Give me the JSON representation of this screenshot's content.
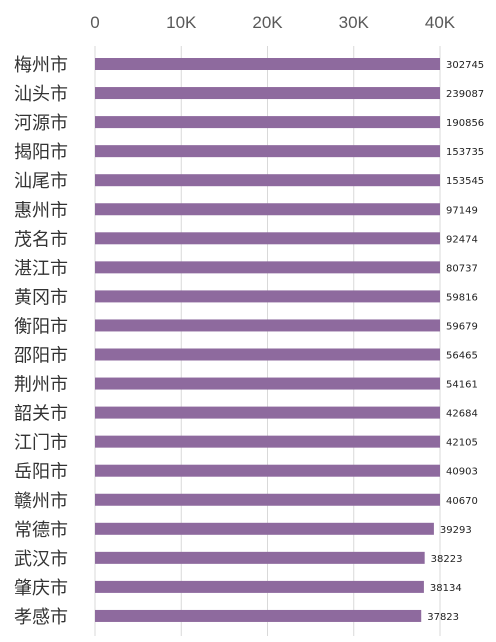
{
  "chart_data": {
    "type": "bar",
    "orientation": "horizontal",
    "title": "",
    "xlabel": "",
    "ylabel": "",
    "xlim": [
      0,
      40000
    ],
    "xticks": [
      0,
      10000,
      20000,
      30000,
      40000
    ],
    "xtick_labels": [
      "0",
      "10K",
      "20K",
      "30K",
      "40K"
    ],
    "x_axis_position": "top",
    "grid": true,
    "bar_color": "#8e6a9e",
    "categories": [
      "梅州市",
      "汕头市",
      "河源市",
      "揭阳市",
      "汕尾市",
      "惠州市",
      "茂名市",
      "湛江市",
      "黄冈市",
      "衡阳市",
      "邵阳市",
      "荆州市",
      "韶关市",
      "江门市",
      "岳阳市",
      "赣州市",
      "常德市",
      "武汉市",
      "肇庆市",
      "孝感市"
    ],
    "values": [
      302745,
      239087,
      190856,
      153735,
      153545,
      97149,
      92474,
      80737,
      59816,
      59679,
      56465,
      54161,
      42684,
      42105,
      40903,
      40670,
      39293,
      38223,
      38134,
      37823
    ],
    "data_labels": [
      "302745",
      "239087",
      "190856",
      "153735",
      "153545",
      "97149",
      "92474",
      "80737",
      "59816",
      "59679",
      "56465",
      "54161",
      "42684",
      "42105",
      "40903",
      "40670",
      "39293",
      "38223",
      "38134",
      "37823"
    ]
  }
}
